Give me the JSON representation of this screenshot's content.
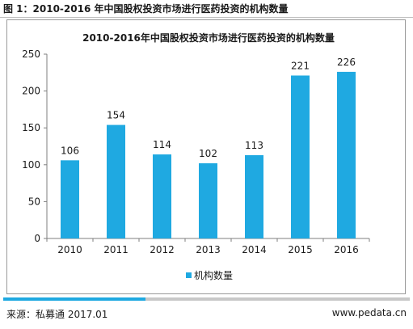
{
  "figure": {
    "caption": "图 1：2010-2016 年中国股权投资市场进行医药投资的机构数量",
    "source": "来源：私募通 2017.01",
    "website": "www.pedata.cn",
    "progress": 0.35
  },
  "chart_data": {
    "type": "bar",
    "title": "2010-2016年中国股权投资市场进行医药投资的机构数量",
    "categories": [
      "2010",
      "2011",
      "2012",
      "2013",
      "2014",
      "2015",
      "2016"
    ],
    "series": [
      {
        "name": "机构数量",
        "values": [
          106,
          154,
          114,
          102,
          113,
          221,
          226
        ]
      }
    ],
    "xlabel": "",
    "ylabel": "",
    "ylim": [
      0,
      250
    ],
    "yticks": [
      0,
      50,
      100,
      150,
      200,
      250
    ],
    "grid": false,
    "legend": "bottom-center",
    "data_labels": true,
    "bar_color": "#1fa9e1"
  }
}
